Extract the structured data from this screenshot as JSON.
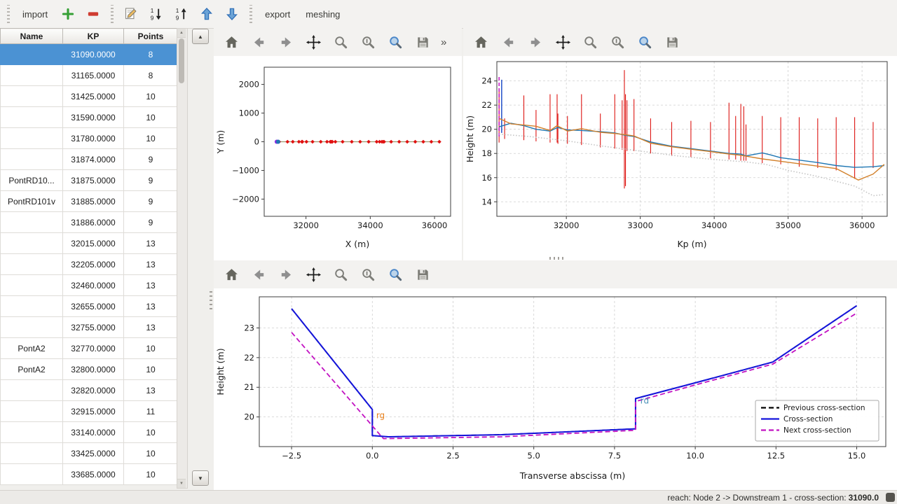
{
  "window": {
    "background": "#f0efec",
    "accent": "#4b92d3"
  },
  "top_toolbar": {
    "import_label": "import",
    "export_label": "export",
    "meshing_label": "meshing",
    "icons": [
      "add-icon",
      "remove-icon",
      "edit-icon",
      "sort-desc-icon",
      "sort-asc-icon",
      "move-up-icon",
      "move-down-icon"
    ]
  },
  "table": {
    "columns": [
      "Name",
      "KP",
      "Points"
    ],
    "selected_row_index": 0,
    "rows": [
      {
        "name": "",
        "kp": "31090.0000",
        "points": "8"
      },
      {
        "name": "",
        "kp": "31165.0000",
        "points": "8"
      },
      {
        "name": "",
        "kp": "31425.0000",
        "points": "10"
      },
      {
        "name": "",
        "kp": "31590.0000",
        "points": "10"
      },
      {
        "name": "",
        "kp": "31780.0000",
        "points": "10"
      },
      {
        "name": "",
        "kp": "31874.0000",
        "points": "9"
      },
      {
        "name": "PontRD10...",
        "kp": "31875.0000",
        "points": "9"
      },
      {
        "name": "PontRD101v",
        "kp": "31885.0000",
        "points": "9"
      },
      {
        "name": "",
        "kp": "31886.0000",
        "points": "9"
      },
      {
        "name": "",
        "kp": "32015.0000",
        "points": "13"
      },
      {
        "name": "",
        "kp": "32205.0000",
        "points": "13"
      },
      {
        "name": "",
        "kp": "32460.0000",
        "points": "13"
      },
      {
        "name": "",
        "kp": "32655.0000",
        "points": "13"
      },
      {
        "name": "",
        "kp": "32755.0000",
        "points": "13"
      },
      {
        "name": "PontA2",
        "kp": "32770.0000",
        "points": "10"
      },
      {
        "name": "PontA2",
        "kp": "32800.0000",
        "points": "10"
      },
      {
        "name": "",
        "kp": "32820.0000",
        "points": "13"
      },
      {
        "name": "",
        "kp": "32915.0000",
        "points": "11"
      },
      {
        "name": "",
        "kp": "33140.0000",
        "points": "10"
      },
      {
        "name": "",
        "kp": "33425.0000",
        "points": "10"
      },
      {
        "name": "",
        "kp": "33685.0000",
        "points": "10"
      }
    ]
  },
  "plot_toolbar": {
    "icons": [
      "home-icon",
      "back-icon",
      "forward-icon",
      "pan-icon",
      "zoom-icon",
      "options-icon",
      "zoom-region-icon",
      "save-icon"
    ],
    "overflow_chevron": "»"
  },
  "status_bar": {
    "text": "reach: Node 2 -> Downstream 1 - cross-section: ",
    "value": "31090.0"
  },
  "chart_data": [
    {
      "id": "plan-view",
      "type": "scatter",
      "xlabel": "X (m)",
      "ylabel": "Y (m)",
      "xlim": [
        30700,
        36500
      ],
      "ylim": [
        -2600,
        2600
      ],
      "xticks": [
        32000,
        34000,
        36000
      ],
      "yticks": [
        -2000,
        -1000,
        0,
        1000,
        2000
      ],
      "ytick_labels": [
        "−2000",
        "−1000",
        "0",
        "1000",
        "2000"
      ],
      "grid": false,
      "series": [
        {
          "name": "river-axis",
          "color": "#9b9b6f",
          "width": 1.2,
          "marker": "diamond",
          "marker_color": "#e01010",
          "y_const": 0,
          "x": [
            31090,
            31165,
            31425,
            31590,
            31780,
            31874,
            31875,
            31885,
            31886,
            32015,
            32205,
            32460,
            32655,
            32755,
            32770,
            32800,
            32820,
            32915,
            33140,
            33425,
            33685,
            33950,
            34200,
            34290,
            34360,
            34400,
            34430,
            34650,
            34900,
            35150,
            35400,
            35650,
            35900,
            36150
          ]
        }
      ],
      "points": [
        {
          "x": 31090,
          "y": 0,
          "color": "#8a2be2",
          "r": 3
        },
        {
          "x": 31135,
          "y": 0,
          "color": "#1f77b4",
          "r": 3
        }
      ]
    },
    {
      "id": "longitudinal-profile",
      "type": "line",
      "xlabel": "Kp (m)",
      "ylabel": "Height (m)",
      "xlim": [
        31060,
        36340
      ],
      "ylim": [
        12.8,
        25.6
      ],
      "xticks": [
        32000,
        33000,
        34000,
        35000,
        36000
      ],
      "yticks": [
        14,
        16,
        18,
        20,
        22,
        24
      ],
      "grid": true,
      "vline_color": "#dd1512",
      "vlines": [
        [
          31090,
          18.9,
          23.2
        ],
        [
          31165,
          19.2,
          20.9
        ],
        [
          31425,
          19.1,
          22.8
        ],
        [
          31590,
          19.0,
          21.6
        ],
        [
          31780,
          18.9,
          22.9
        ],
        [
          31875,
          18.9,
          22.9
        ],
        [
          31886,
          18.8,
          21.3
        ],
        [
          32015,
          18.8,
          21.1
        ],
        [
          32205,
          18.7,
          22.9
        ],
        [
          32460,
          18.5,
          21.3
        ],
        [
          32655,
          18.4,
          22.9
        ],
        [
          32755,
          18.3,
          22.4
        ],
        [
          32785,
          15.1,
          24.9
        ],
        [
          32800,
          15.3,
          22.9
        ],
        [
          32820,
          18.2,
          22.4
        ],
        [
          32915,
          18.2,
          22.5
        ],
        [
          33140,
          18.0,
          20.9
        ],
        [
          33425,
          17.8,
          20.6
        ],
        [
          33685,
          17.7,
          20.7
        ],
        [
          33950,
          17.6,
          20.6
        ],
        [
          34200,
          17.5,
          22.2
        ],
        [
          34290,
          17.5,
          21.1
        ],
        [
          34360,
          17.4,
          22.1
        ],
        [
          34400,
          17.4,
          21.9
        ],
        [
          34430,
          17.4,
          20.4
        ],
        [
          34650,
          17.2,
          21.1
        ],
        [
          34900,
          17.1,
          21.0
        ],
        [
          35150,
          16.9,
          21.0
        ],
        [
          35400,
          16.8,
          20.9
        ],
        [
          35650,
          16.6,
          21.0
        ],
        [
          35900,
          15.9,
          21.0
        ],
        [
          36150,
          16.8,
          20.6
        ]
      ],
      "highlight_vlines": [
        {
          "x": 31090,
          "y0": 19.4,
          "y1": 24.4,
          "color": "#c000c0",
          "dash": "5,3",
          "width": 1.4
        },
        {
          "x": 31125,
          "y0": 19.7,
          "y1": 24.1,
          "color": "#2050c8",
          "width": 1.5
        }
      ],
      "series": [
        {
          "name": "left-bank-line",
          "color": "#1f77b4",
          "width": 1.4,
          "x": [
            31090,
            31250,
            31425,
            31590,
            31780,
            31880,
            32015,
            32205,
            32460,
            32655,
            32800,
            32915,
            33140,
            33425,
            33685,
            33950,
            34200,
            34360,
            34430,
            34650,
            34750,
            34900,
            35150,
            35400,
            35650,
            35900,
            36150,
            36300
          ],
          "y": [
            20.2,
            20.5,
            20.3,
            20.0,
            19.85,
            20.15,
            19.95,
            19.9,
            19.8,
            19.7,
            19.5,
            19.4,
            18.95,
            18.6,
            18.4,
            18.2,
            18.0,
            17.95,
            17.8,
            18.05,
            17.9,
            17.65,
            17.45,
            17.25,
            17.0,
            16.85,
            16.9,
            17.0
          ]
        },
        {
          "name": "right-bank-line",
          "color": "#d2802a",
          "width": 1.4,
          "x": [
            31090,
            31250,
            31425,
            31590,
            31780,
            31874,
            32015,
            32205,
            32460,
            32655,
            32800,
            32915,
            33140,
            33425,
            33685,
            33950,
            34200,
            34360,
            34650,
            34900,
            35150,
            35400,
            35650,
            35950,
            36150,
            36300
          ],
          "y": [
            20.9,
            20.45,
            20.35,
            20.25,
            19.9,
            20.3,
            19.85,
            20.05,
            19.75,
            19.65,
            19.55,
            19.45,
            18.85,
            18.55,
            18.35,
            18.15,
            17.95,
            17.85,
            17.55,
            17.35,
            17.15,
            16.95,
            16.75,
            15.8,
            16.3,
            17.1
          ]
        },
        {
          "name": "bottom-dotted-line",
          "color": "#c4c4c4",
          "width": 1.6,
          "dash": "1.5,2.5",
          "x": [
            31090,
            31500,
            32000,
            32500,
            33000,
            33500,
            34000,
            34430,
            34700,
            35000,
            35400,
            35900,
            36150,
            36300
          ],
          "y": [
            19.6,
            19.4,
            19.05,
            18.6,
            18.2,
            17.8,
            17.5,
            17.3,
            17.1,
            16.6,
            16.1,
            15.3,
            14.5,
            14.6
          ]
        }
      ]
    },
    {
      "id": "cross-section",
      "type": "line",
      "xlabel": "Transverse abscissa (m)",
      "ylabel": "Height (m)",
      "xlim": [
        -3.5,
        15.9
      ],
      "ylim": [
        19.0,
        24.05
      ],
      "xticks": [
        -2.5,
        0,
        2.5,
        5,
        7.5,
        10,
        12.5,
        15
      ],
      "xtick_labels": [
        "−2.5",
        "0.0",
        "2.5",
        "5.0",
        "7.5",
        "10.0",
        "12.5",
        "15.0"
      ],
      "yticks": [
        20,
        21,
        22,
        23
      ],
      "grid": true,
      "legend": true,
      "series": [
        {
          "name": "Previous cross-section",
          "color": "#000000",
          "dash": "7,4",
          "width": 1.8,
          "x": [
            -2.5,
            0,
            0,
            0.5,
            4,
            8.15,
            8.15,
            10,
            12.4,
            15
          ],
          "y": [
            23.65,
            20.25,
            19.37,
            19.33,
            19.4,
            19.6,
            20.62,
            21.15,
            21.85,
            23.75
          ]
        },
        {
          "name": "Cross-section",
          "color": "#1414dc",
          "width": 2,
          "x": [
            -2.5,
            0,
            0,
            0.5,
            4,
            8.15,
            8.15,
            10,
            12.4,
            15
          ],
          "y": [
            23.65,
            20.25,
            19.37,
            19.33,
            19.4,
            19.6,
            20.62,
            21.15,
            21.85,
            23.75
          ]
        },
        {
          "name": "Next cross-section",
          "color": "#c213c2",
          "dash": "7,4",
          "width": 1.8,
          "x": [
            -2.5,
            0.3,
            0.35,
            4,
            8.15,
            8.15,
            10,
            12.4,
            15
          ],
          "y": [
            22.85,
            19.32,
            19.27,
            19.33,
            19.55,
            20.52,
            21.08,
            21.78,
            23.5
          ]
        }
      ],
      "annotations": [
        {
          "text": "rg",
          "x": 0.12,
          "y": 19.95,
          "color": "#e8821e"
        },
        {
          "text": "rd",
          "x": 8.3,
          "y": 20.45,
          "color": "#4a90b8"
        }
      ]
    }
  ]
}
